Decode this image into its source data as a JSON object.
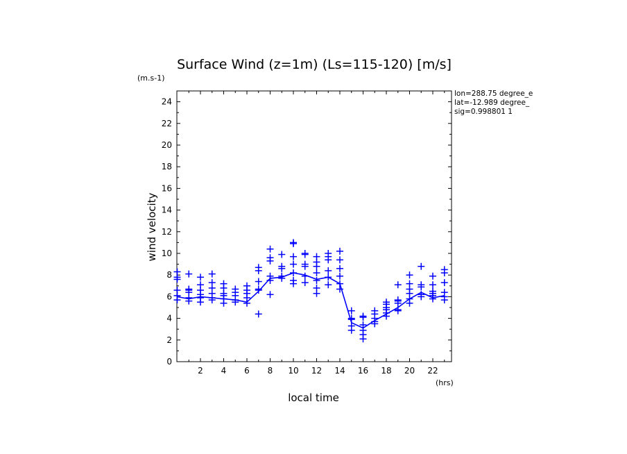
{
  "chart_data": {
    "type": "scatter",
    "title": "Surface Wind (z=1m) (Ls=115-120) [m/s]",
    "y_unit": "(m.s-1)",
    "x_unit": "(hrs)",
    "xlabel": "local time",
    "ylabel": "wind velocity",
    "xlim": [
      0,
      23
    ],
    "ylim": [
      0,
      25
    ],
    "x_tick_labels": [
      "2",
      "4",
      "6",
      "8",
      "10",
      "12",
      "14",
      "16",
      "18",
      "20",
      "22"
    ],
    "y_tick_labels": [
      "0",
      "2",
      "4",
      "6",
      "8",
      "10",
      "12",
      "14",
      "16",
      "18",
      "20",
      "22",
      "24"
    ],
    "info_lines": [
      "lon=288.75 degree_e",
      "lat=-12.989 degree_",
      "sig=0.998801 1"
    ],
    "color": "#0000ff",
    "series": [
      {
        "type": "line",
        "x": [
          0,
          1,
          2,
          3,
          4,
          5,
          6,
          7,
          8,
          9,
          10,
          11,
          12,
          13,
          14,
          15,
          16,
          17,
          18,
          19,
          20,
          21,
          22,
          23
        ],
        "y": [
          6.0,
          5.8,
          6.0,
          5.9,
          5.8,
          5.7,
          5.5,
          6.5,
          7.7,
          7.8,
          8.2,
          8.0,
          7.6,
          7.8,
          7.2,
          3.6,
          3.1,
          3.8,
          4.4,
          5.0,
          5.8,
          6.4,
          5.9,
          6.1
        ]
      },
      {
        "type": "scatter",
        "marker": "plus",
        "points": [
          [
            0,
            5.7
          ],
          [
            0,
            6.1
          ],
          [
            0,
            6.6
          ],
          [
            0,
            7.6
          ],
          [
            0,
            7.8
          ],
          [
            0,
            8.3
          ],
          [
            1,
            5.6
          ],
          [
            1,
            5.9
          ],
          [
            1,
            6.4
          ],
          [
            1,
            6.6
          ],
          [
            1,
            6.7
          ],
          [
            1,
            8.1
          ],
          [
            2,
            5.5
          ],
          [
            2,
            5.9
          ],
          [
            2,
            6.2
          ],
          [
            2,
            6.6
          ],
          [
            2,
            7.1
          ],
          [
            2,
            7.8
          ],
          [
            3,
            5.7
          ],
          [
            3,
            5.9
          ],
          [
            3,
            6.3
          ],
          [
            3,
            6.8
          ],
          [
            3,
            7.3
          ],
          [
            3,
            8.1
          ],
          [
            4,
            5.4
          ],
          [
            4,
            5.8
          ],
          [
            4,
            6.1
          ],
          [
            4,
            6.3
          ],
          [
            4,
            6.8
          ],
          [
            4,
            7.2
          ],
          [
            5,
            5.5
          ],
          [
            5,
            5.7
          ],
          [
            5,
            6.1
          ],
          [
            5,
            6.4
          ],
          [
            5,
            6.7
          ],
          [
            6,
            5.4
          ],
          [
            6,
            5.9
          ],
          [
            6,
            6.3
          ],
          [
            6,
            6.6
          ],
          [
            6,
            7.0
          ],
          [
            7,
            4.4
          ],
          [
            7,
            6.6
          ],
          [
            7,
            6.7
          ],
          [
            7,
            7.4
          ],
          [
            7,
            8.4
          ],
          [
            7,
            8.7
          ],
          [
            8,
            6.2
          ],
          [
            8,
            7.5
          ],
          [
            8,
            7.9
          ],
          [
            8,
            9.3
          ],
          [
            8,
            9.6
          ],
          [
            8,
            10.4
          ],
          [
            9,
            7.7
          ],
          [
            9,
            7.9
          ],
          [
            9,
            8.6
          ],
          [
            9,
            8.8
          ],
          [
            9,
            9.9
          ],
          [
            10,
            7.2
          ],
          [
            10,
            7.5
          ],
          [
            10,
            8.2
          ],
          [
            10,
            9.0
          ],
          [
            10,
            9.7
          ],
          [
            10,
            10.9
          ],
          [
            10,
            11.0
          ],
          [
            11,
            7.3
          ],
          [
            11,
            7.9
          ],
          [
            11,
            8.8
          ],
          [
            11,
            9.0
          ],
          [
            11,
            9.9
          ],
          [
            11,
            10.0
          ],
          [
            12,
            6.3
          ],
          [
            12,
            6.8
          ],
          [
            12,
            7.5
          ],
          [
            12,
            8.2
          ],
          [
            12,
            8.8
          ],
          [
            12,
            9.2
          ],
          [
            12,
            9.7
          ],
          [
            13,
            7.1
          ],
          [
            13,
            7.8
          ],
          [
            13,
            8.4
          ],
          [
            13,
            9.4
          ],
          [
            13,
            9.7
          ],
          [
            13,
            10.0
          ],
          [
            14,
            6.7
          ],
          [
            14,
            7.2
          ],
          [
            14,
            7.9
          ],
          [
            14,
            8.6
          ],
          [
            14,
            9.4
          ],
          [
            14,
            10.2
          ],
          [
            15,
            2.9
          ],
          [
            15,
            3.3
          ],
          [
            15,
            3.9
          ],
          [
            15,
            4.0
          ],
          [
            15,
            4.7
          ],
          [
            16,
            2.1
          ],
          [
            16,
            2.5
          ],
          [
            16,
            2.9
          ],
          [
            16,
            3.4
          ],
          [
            16,
            4.1
          ],
          [
            16,
            4.2
          ],
          [
            17,
            3.5
          ],
          [
            17,
            3.7
          ],
          [
            17,
            4.0
          ],
          [
            17,
            4.4
          ],
          [
            17,
            4.7
          ],
          [
            18,
            4.2
          ],
          [
            18,
            4.5
          ],
          [
            18,
            4.8
          ],
          [
            18,
            5.0
          ],
          [
            18,
            5.3
          ],
          [
            18,
            5.5
          ],
          [
            19,
            4.7
          ],
          [
            19,
            4.8
          ],
          [
            19,
            5.4
          ],
          [
            19,
            5.6
          ],
          [
            19,
            5.7
          ],
          [
            19,
            7.1
          ],
          [
            20,
            5.4
          ],
          [
            20,
            5.8
          ],
          [
            20,
            6.3
          ],
          [
            20,
            6.7
          ],
          [
            20,
            7.2
          ],
          [
            20,
            8.0
          ],
          [
            21,
            6.0
          ],
          [
            21,
            6.2
          ],
          [
            21,
            6.9
          ],
          [
            21,
            7.1
          ],
          [
            21,
            8.8
          ],
          [
            22,
            5.8
          ],
          [
            22,
            6.1
          ],
          [
            22,
            6.3
          ],
          [
            22,
            6.5
          ],
          [
            22,
            7.1
          ],
          [
            22,
            7.9
          ],
          [
            23,
            5.7
          ],
          [
            23,
            6.0
          ],
          [
            23,
            6.4
          ],
          [
            23,
            7.3
          ],
          [
            23,
            8.2
          ],
          [
            23,
            8.5
          ]
        ]
      }
    ]
  }
}
